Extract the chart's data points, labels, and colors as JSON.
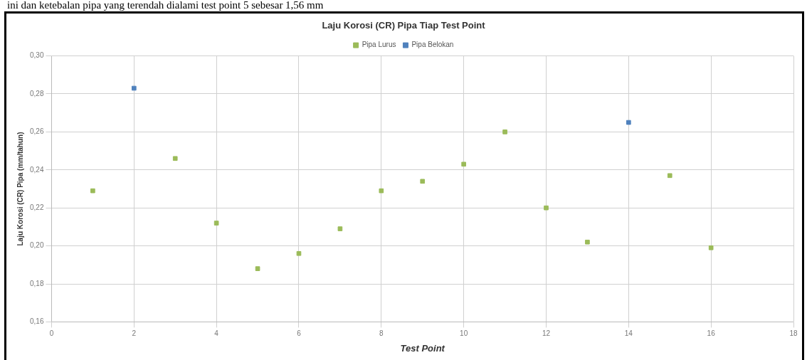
{
  "chart_data": {
    "type": "scatter",
    "title": "Laju Korosi (CR) Pipa Tiap Test Point",
    "xlabel": "Test Point",
    "ylabel": "Laju Korosi (CR) Pipa (mm/tahun)",
    "annotations": [
      "ini dan ketebalan pipa yang terendah dialami test point 5 sebesar 1,56 mm"
    ],
    "series": [
      {
        "name": "Pipa Lurus",
        "color": "#9bbb59",
        "x": [
          1,
          3,
          4,
          5,
          6,
          7,
          8,
          9,
          10,
          11,
          12,
          13,
          15,
          16
        ],
        "values": [
          0.229,
          0.246,
          0.212,
          0.188,
          0.196,
          0.209,
          0.229,
          0.234,
          0.243,
          0.26,
          0.22,
          0.202,
          0.237,
          0.199
        ]
      },
      {
        "name": "Pipa Belokan",
        "color": "#4f81bd",
        "x": [
          2,
          14
        ],
        "values": [
          0.283,
          0.265
        ]
      }
    ],
    "xlim": [
      0,
      18
    ],
    "xticks": [
      0,
      2,
      4,
      6,
      8,
      10,
      12,
      14,
      16,
      18
    ],
    "ylim": [
      0.16,
      0.3
    ],
    "yticks": [
      {
        "value": 0.16,
        "label": "0,16"
      },
      {
        "value": 0.18,
        "label": "0,18"
      },
      {
        "value": 0.2,
        "label": "0,20"
      },
      {
        "value": 0.22,
        "label": "0,22"
      },
      {
        "value": 0.24,
        "label": "0,24"
      },
      {
        "value": 0.26,
        "label": "0,26"
      },
      {
        "value": 0.28,
        "label": "0,28"
      },
      {
        "value": 0.3,
        "label": "0,30"
      }
    ],
    "grid": true,
    "legend": "top",
    "marker": "square"
  }
}
